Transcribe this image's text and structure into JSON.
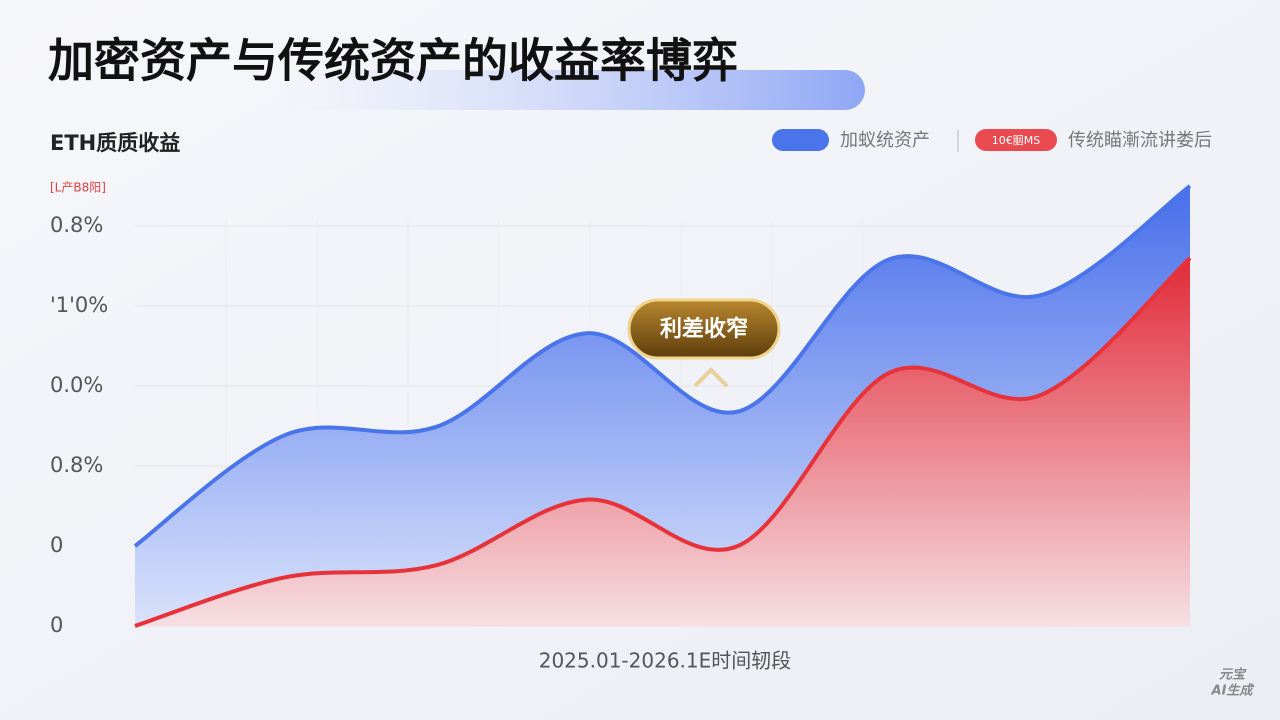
{
  "chart_data": {
    "type": "area",
    "title": "加密资产与传统资产的收益率博弈",
    "subtitle": "ETH质质收益",
    "y_note": "[L产B8阳]",
    "x_label": "2025.01-2026.1E时间轫段",
    "annotation": "利差收窄",
    "legend_badge": "10€胭MS",
    "watermark": [
      "元宝",
      "AI生成"
    ],
    "categories": [
      null,
      null,
      null,
      null,
      null,
      null,
      null,
      null
    ],
    "series": [
      {
        "name": "加蚁统资产",
        "color": "#4a74ea",
        "values": [
          1.0,
          2.39,
          2.49,
          3.66,
          2.68,
          4.58,
          4.13,
          5.5
        ]
      },
      {
        "name": "传统瞄漸流讲娄后",
        "color": "#e8323a",
        "values": [
          0,
          0.61,
          0.76,
          1.58,
          1.0,
          3.16,
          2.88,
          4.6
        ]
      }
    ],
    "ylim": [
      0,
      5.5
    ],
    "yticks": [
      {
        "value": 0,
        "label": "0"
      },
      {
        "value": 1,
        "label": "0"
      },
      {
        "value": 2,
        "label": "0.8%"
      },
      {
        "value": 3,
        "label": "0.0%"
      },
      {
        "value": 4,
        "label": "'1'0%"
      },
      {
        "value": 5,
        "label": "0.8%"
      }
    ],
    "grid": true
  }
}
